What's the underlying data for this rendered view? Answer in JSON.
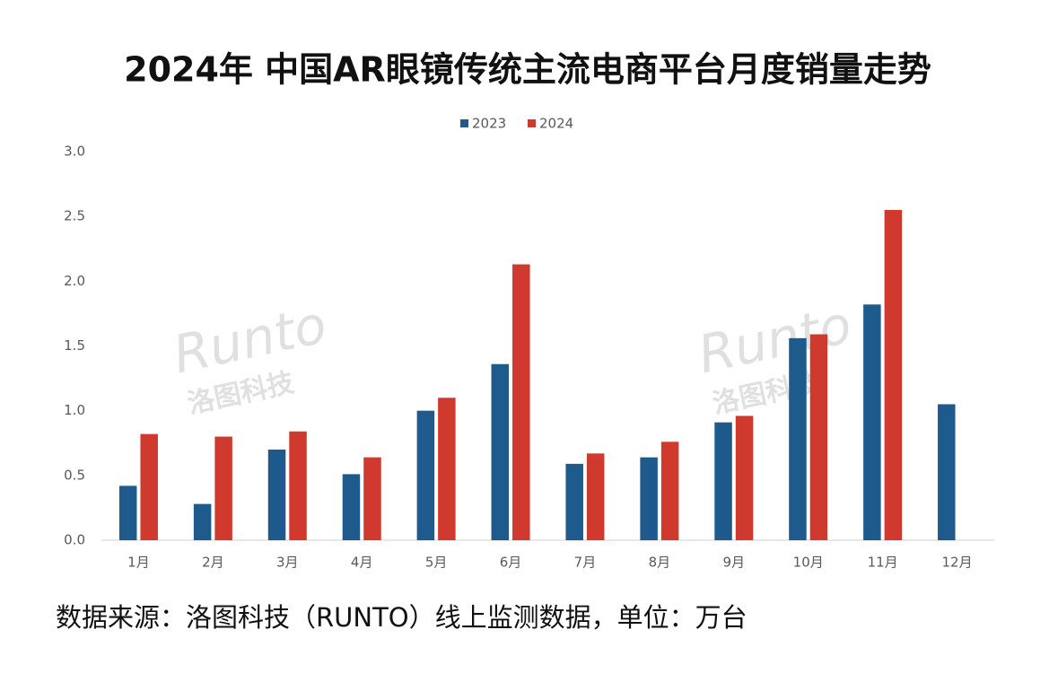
{
  "chart_data": {
    "type": "bar",
    "title": "2024年 中国AR眼镜传统主流电商平台月度销量走势",
    "categories": [
      "1月",
      "2月",
      "3月",
      "4月",
      "5月",
      "6月",
      "7月",
      "8月",
      "9月",
      "10月",
      "11月",
      "12月"
    ],
    "series": [
      {
        "name": "2023",
        "color": "#1f5a8c",
        "values": [
          0.42,
          0.28,
          0.7,
          0.51,
          1.0,
          1.36,
          0.59,
          0.64,
          0.91,
          1.56,
          1.82,
          1.05
        ]
      },
      {
        "name": "2024",
        "color": "#d0392e",
        "values": [
          0.82,
          0.8,
          0.84,
          0.64,
          1.1,
          2.13,
          0.67,
          0.76,
          0.96,
          1.59,
          2.55,
          null
        ]
      }
    ],
    "ylim": [
      0,
      3
    ],
    "yticks": [
      {
        "value": 0,
        "label": "0.0"
      },
      0.5,
      {
        "value": 1,
        "label": "1.0"
      },
      1.5,
      {
        "value": 2,
        "label": "2.0"
      },
      2.5,
      {
        "value": 3,
        "label": "3.0"
      }
    ],
    "grid": false,
    "legend": "top",
    "watermark": [
      "Runto",
      "洛图科技"
    ],
    "note": "数据来源：洛图科技（RUNTO）线上监测数据，单位：万台"
  }
}
